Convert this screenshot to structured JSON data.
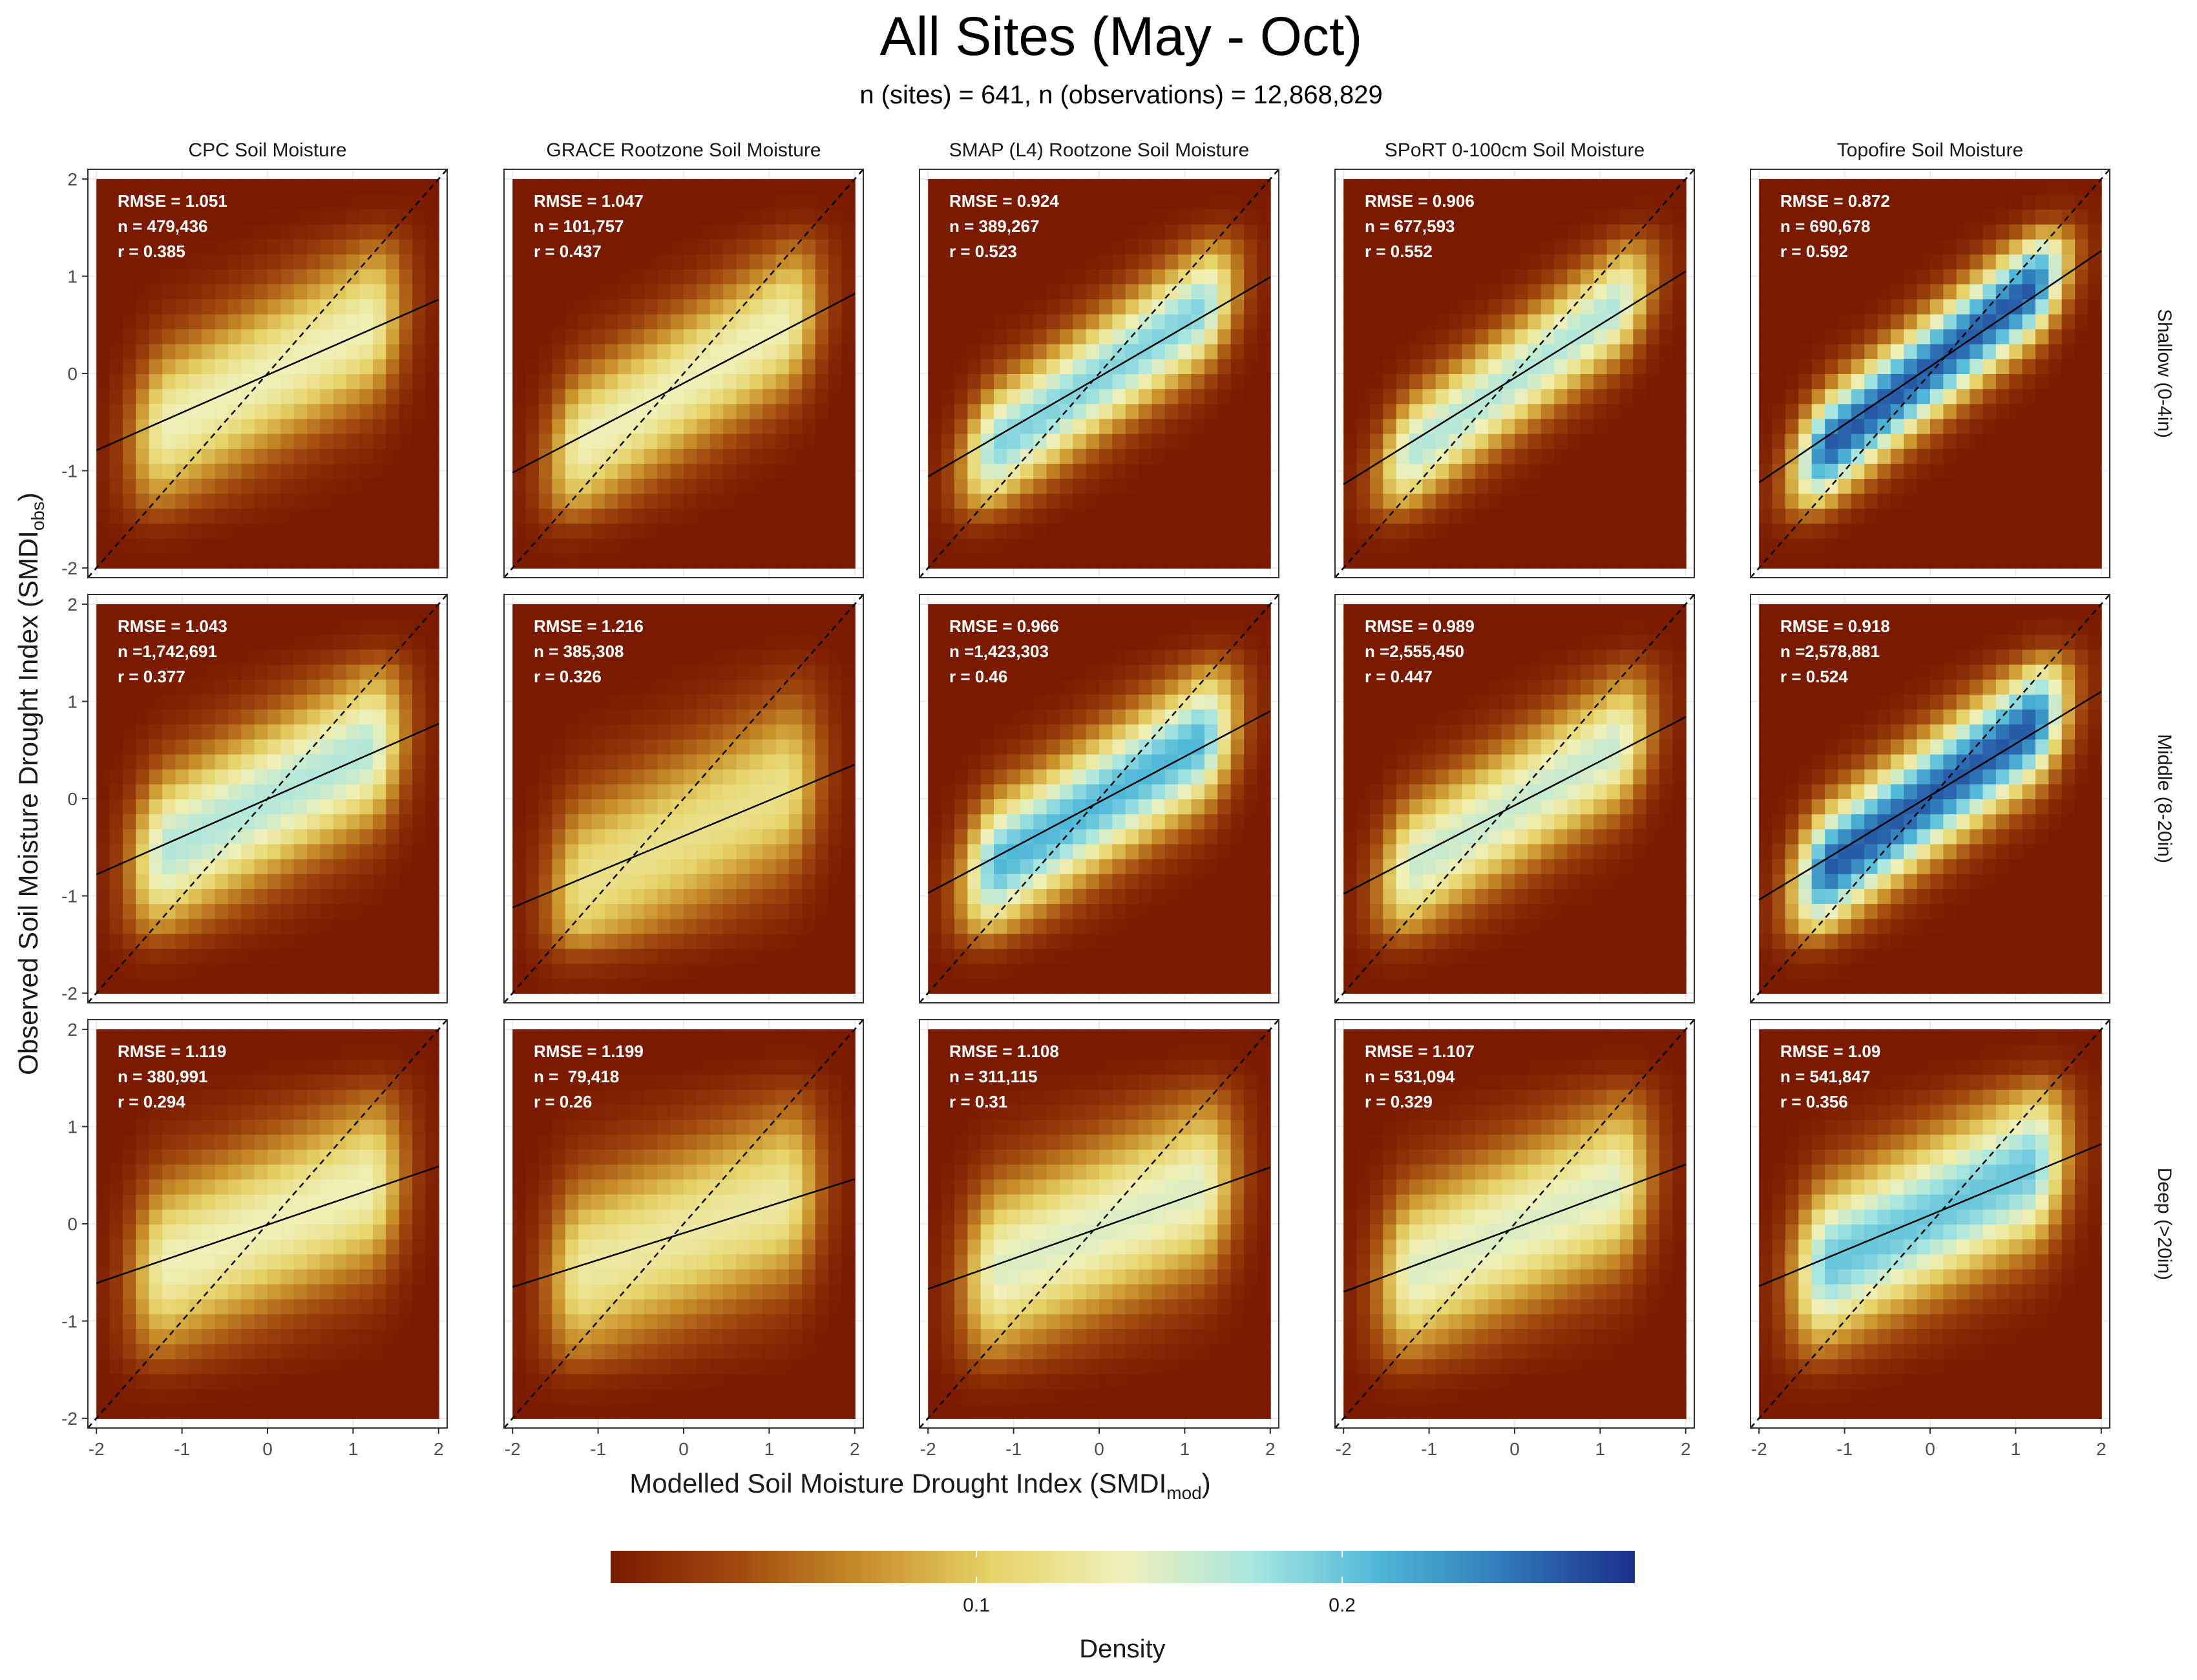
{
  "figure": {
    "title": "All Sites (May - Oct)",
    "subtitle": "n (sites) = 641, n (observations) = 12,868,829",
    "x_label": "Modelled Soil Moisture Drought Index (",
    "x_label_sym": "SMDI",
    "x_label_sub": "mod",
    "x_label_close": ")",
    "y_label": "Observed Soil Moisture Drought Index (",
    "y_label_sym": "SMDI",
    "y_label_sub": "obs",
    "y_label_close": ")",
    "legend_title": "Density",
    "legend_ticks": [
      "0.1",
      "0.2"
    ],
    "legend_tick_values": [
      0.1,
      0.2
    ],
    "legend_range": [
      0.0,
      0.28
    ],
    "colors": [
      "#7a1a00",
      "#a14a0f",
      "#c9902a",
      "#e6d46a",
      "#f0f0b8",
      "#a8e6e0",
      "#4fb8d8",
      "#2f78b8",
      "#1a2f8a"
    ]
  },
  "chart_data": {
    "type": "heatmap",
    "columns": [
      "CPC Soil Moisture",
      "GRACE Rootzone Soil Moisture",
      "SMAP (L4) Rootzone Soil Moisture",
      "SPoRT 0-100cm Soil Moisture",
      "Topofire Soil Moisture"
    ],
    "rows": [
      "Shallow (0-4in)",
      "Middle (8-20in)",
      "Deep (>20in)"
    ],
    "xlim": [
      -2.1,
      2.1
    ],
    "ylim": [
      -2.1,
      2.1
    ],
    "ticks": [
      -2,
      -1,
      0,
      1,
      2
    ],
    "tick_labels": [
      "-2",
      "-1",
      "0",
      "1",
      "2"
    ],
    "stat_labels": {
      "rmse": "RMSE = ",
      "n": "n =",
      "r": "r = "
    },
    "reference_line": "1:1 dashed",
    "panels": [
      [
        {
          "rmse": "1.051",
          "n": " 479,436",
          "r": "0.385",
          "line": [
            -0.79,
            0.76
          ],
          "peak": 0.14,
          "spread": 0.45
        },
        {
          "rmse": "1.047",
          "n": " 101,757",
          "r": "0.437",
          "line": [
            -1.02,
            0.82
          ],
          "peak": 0.14,
          "spread": 0.42
        },
        {
          "rmse": "0.924",
          "n": " 389,267",
          "r": "0.523",
          "line": [
            -1.06,
            0.99
          ],
          "peak": 0.19,
          "spread": 0.34
        },
        {
          "rmse": "0.906",
          "n": " 677,593",
          "r": "0.552",
          "line": [
            -1.14,
            1.05
          ],
          "peak": 0.17,
          "spread": 0.32
        },
        {
          "rmse": "0.872",
          "n": " 690,678",
          "r": "0.592",
          "line": [
            -1.12,
            1.26
          ],
          "peak": 0.26,
          "spread": 0.3
        }
      ],
      [
        {
          "rmse": "1.043",
          "n": "1,742,691",
          "r": "0.377",
          "line": [
            -0.78,
            0.77
          ],
          "peak": 0.17,
          "spread": 0.45
        },
        {
          "rmse": "1.216",
          "n": " 385,308",
          "r": "0.326",
          "line": [
            -1.12,
            0.35
          ],
          "peak": 0.12,
          "spread": 0.5
        },
        {
          "rmse": "0.966",
          "n": "1,423,303",
          "r": "0.46",
          "line": [
            -0.97,
            0.9
          ],
          "peak": 0.21,
          "spread": 0.38
        },
        {
          "rmse": "0.989",
          "n": "2,555,450",
          "r": "0.447",
          "line": [
            -0.98,
            0.84
          ],
          "peak": 0.16,
          "spread": 0.38
        },
        {
          "rmse": "0.918",
          "n": "2,578,881",
          "r": "0.524",
          "line": [
            -1.04,
            1.1
          ],
          "peak": 0.26,
          "spread": 0.34
        }
      ],
      [
        {
          "rmse": "1.119",
          "n": " 380,991",
          "r": "0.294",
          "line": [
            -0.61,
            0.59
          ],
          "peak": 0.14,
          "spread": 0.5
        },
        {
          "rmse": "1.199",
          "n": "  79,418",
          "r": "0.26",
          "line": [
            -0.65,
            0.46
          ],
          "peak": 0.13,
          "spread": 0.52
        },
        {
          "rmse": "1.108",
          "n": " 311,115",
          "r": "0.31",
          "line": [
            -0.67,
            0.58
          ],
          "peak": 0.15,
          "spread": 0.5
        },
        {
          "rmse": "1.107",
          "n": " 531,094",
          "r": "0.329",
          "line": [
            -0.7,
            0.61
          ],
          "peak": 0.15,
          "spread": 0.48
        },
        {
          "rmse": "1.09",
          "n": " 541,847",
          "r": "0.356",
          "line": [
            -0.64,
            0.82
          ],
          "peak": 0.2,
          "spread": 0.45
        }
      ]
    ]
  }
}
